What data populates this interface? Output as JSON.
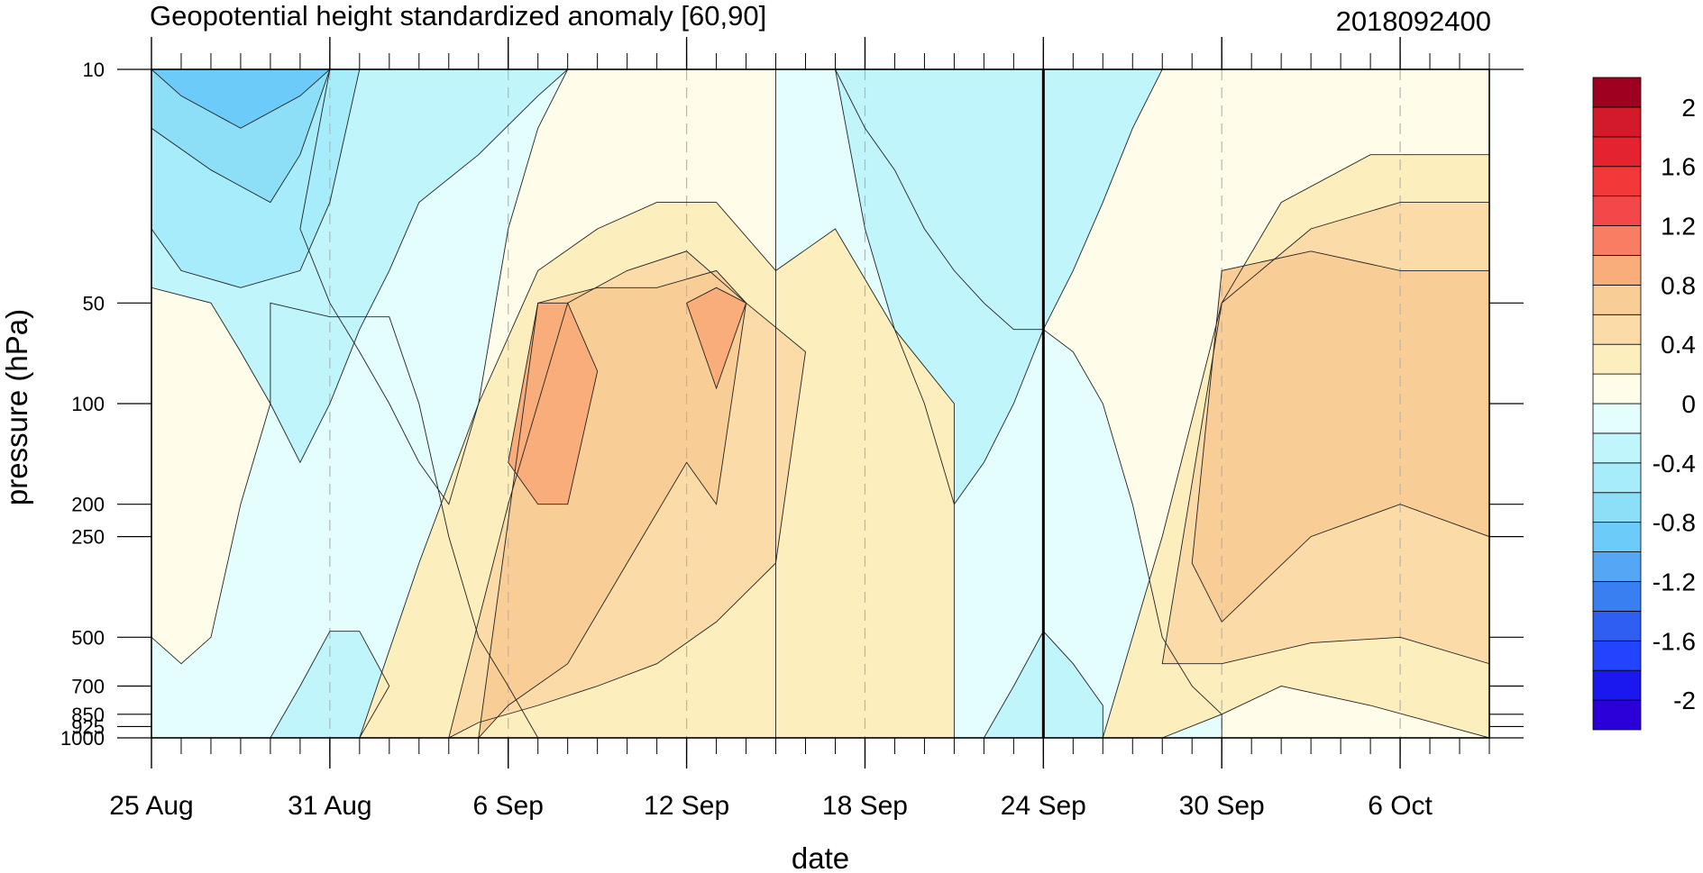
{
  "chart_data": {
    "type": "heatmap",
    "subtype": "filled-contour",
    "title": "Geopotential height standardized anomaly [60,90]",
    "right_title": "2018092400",
    "xlabel": "date",
    "ylabel": "pressure (hPa)",
    "y_scale": "log",
    "y_reversed": true,
    "ylim": [
      1000,
      10
    ],
    "xlim": [
      "2018-08-25",
      "2018-10-09"
    ],
    "x_ticks": [
      {
        "label": "25 Aug",
        "date": "2018-08-25"
      },
      {
        "label": "31 Aug",
        "date": "2018-08-31"
      },
      {
        "label": "6 Sep",
        "date": "2018-09-06"
      },
      {
        "label": "12 Sep",
        "date": "2018-09-12"
      },
      {
        "label": "18 Sep",
        "date": "2018-09-18"
      },
      {
        "label": "24 Sep",
        "date": "2018-09-24"
      },
      {
        "label": "30 Sep",
        "date": "2018-09-30"
      },
      {
        "label": "6 Oct",
        "date": "2018-10-06"
      }
    ],
    "y_ticks": [
      10,
      50,
      100,
      200,
      250,
      500,
      700,
      850,
      925,
      1000
    ],
    "y_tick_labels": [
      "10",
      "50",
      "100",
      "200",
      "250",
      "500",
      "700",
      "850",
      "925",
      "1000"
    ],
    "vertical_line_date": "2018-09-24",
    "grid": "dashed vertical lines at labeled dates",
    "levels": [
      -2.2,
      -2,
      -1.8,
      -1.6,
      -1.4,
      -1.2,
      -1,
      -0.8,
      -0.6,
      -0.4,
      -0.2,
      0,
      0.2,
      0.4,
      0.6,
      0.8,
      1,
      1.2,
      1.4,
      1.6,
      1.8,
      2,
      2.2
    ],
    "colorbar_labels": [
      "2",
      "1.6",
      "1.2",
      "0.8",
      "0.4",
      "0",
      "-0.4",
      "-0.8",
      "-1.2",
      "-1.6",
      "-2"
    ],
    "colorbar_colors": [
      "#2b00d8",
      "#1a18ee",
      "#2244ff",
      "#2e5ff2",
      "#3a7ff2",
      "#55a6f5",
      "#6ccbf8",
      "#8ddff8",
      "#a6ecfa",
      "#c0f5fb",
      "#e4fdfd",
      "#fffde9",
      "#fcefbd",
      "#fbdca8",
      "#f9cd96",
      "#f9ad7a",
      "#f97d62",
      "#f2484a",
      "#f23838",
      "#e42230",
      "#d31a2a",
      "#a0001f"
    ],
    "regions": [
      {
        "level": 0,
        "color": "#fffde9",
        "label": "0 to 0.2",
        "dates": [
          "2018-08-25",
          "2018-10-09",
          "2018-10-09",
          "2018-08-25"
        ],
        "p": [
          1000,
          1000,
          10,
          10
        ]
      },
      {
        "level": -0.2,
        "color": "#e4fdfd",
        "label": "-0.2 to 0",
        "dates": [
          "2018-08-25",
          "2018-08-25",
          "2018-08-26",
          "2018-08-27",
          "2018-08-28",
          "2018-08-29",
          "2018-08-29",
          "2018-08-31",
          "2018-09-02",
          "2018-09-03",
          "2018-09-04",
          "2018-09-05",
          "2018-09-06",
          "2018-09-07",
          "2018-09-09",
          "2018-09-10",
          "2018-09-11",
          "2018-09-12",
          "2018-09-13",
          "2018-09-14",
          "2018-09-13",
          "2018-09-12",
          "2018-09-11",
          "2018-09-10",
          "2018-09-09",
          "2018-09-08",
          "2018-09-07",
          "2018-09-07",
          "2018-09-06",
          "2018-09-05",
          "2018-09-04",
          "2018-09-03",
          "2018-08-25"
        ],
        "p": [
          1000,
          500,
          600,
          500,
          200,
          100,
          50,
          55,
          55,
          100,
          250,
          500,
          700,
          1000,
          1000,
          1000,
          1000,
          1000,
          1000,
          1000,
          1000,
          1000,
          1000,
          1000,
          1000,
          1000,
          1000,
          1000,
          1000,
          1000,
          1000,
          1000,
          1000
        ]
      },
      {
        "level": -0.2,
        "color": "#e4fdfd",
        "label": "-0.2 to 0 (upper)",
        "dates": [
          "2018-09-08",
          "2018-09-14",
          "2018-09-12",
          "2018-09-10",
          "2018-09-09",
          "2018-09-07",
          "2018-09-05",
          "2018-09-03",
          "2018-09-01",
          "2018-08-31",
          "2018-08-30",
          "2018-08-31",
          "2018-09-01",
          "2018-09-02",
          "2018-09-03",
          "2018-09-04",
          "2018-09-05",
          "2018-09-06",
          "2018-09-07"
        ],
        "p": [
          10,
          10,
          10,
          10,
          10,
          10,
          10,
          10,
          10,
          10,
          30,
          50,
          70,
          100,
          150,
          200,
          100,
          30,
          15
        ]
      },
      {
        "level": -0.2,
        "color": "#e4fdfd",
        "label": "-0.2 to 0 (mid)",
        "dates": [
          "2018-09-15",
          "2018-09-17",
          "2018-09-18",
          "2018-09-19",
          "2018-09-20",
          "2018-09-21",
          "2018-09-22",
          "2018-09-23",
          "2018-09-24",
          "2018-09-25",
          "2018-09-26",
          "2018-09-27",
          "2018-09-28",
          "2018-09-29",
          "2018-09-30",
          "2018-09-30",
          "2018-09-29",
          "2018-09-28",
          "2018-09-27",
          "2018-09-26",
          "2018-09-25",
          "2018-09-24",
          "2018-09-23",
          "2018-09-22",
          "2018-09-21",
          "2018-09-20",
          "2018-09-19",
          "2018-09-18",
          "2018-09-17",
          "2018-09-16",
          "2018-09-15"
        ],
        "p": [
          10,
          10,
          15,
          20,
          30,
          40,
          50,
          60,
          60,
          70,
          100,
          200,
          500,
          700,
          850,
          1000,
          1000,
          1000,
          1000,
          1000,
          1000,
          1000,
          1000,
          1000,
          1000,
          1000,
          1000,
          1000,
          1000,
          1000,
          1000
        ]
      },
      {
        "level": -0.4,
        "color": "#c0f5fb",
        "label": "-0.4 to -0.2",
        "dates": [
          "2018-08-25",
          "2018-09-08",
          "2018-09-07",
          "2018-09-05",
          "2018-09-03",
          "2018-09-02",
          "2018-09-01",
          "2018-08-31",
          "2018-08-30",
          "2018-08-29",
          "2018-08-28",
          "2018-08-27",
          "2018-08-25"
        ],
        "p": [
          10,
          10,
          12,
          18,
          25,
          40,
          60,
          100,
          150,
          100,
          70,
          50,
          45
        ]
      },
      {
        "level": -0.4,
        "color": "#c0f5fb",
        "label": "-0.4 to -0.2 (right)",
        "dates": [
          "2018-09-17",
          "2018-09-28",
          "2018-09-27",
          "2018-09-26",
          "2018-09-25",
          "2018-09-24",
          "2018-09-23",
          "2018-09-22",
          "2018-09-21",
          "2018-09-20",
          "2018-09-19",
          "2018-09-18"
        ],
        "p": [
          10,
          10,
          15,
          25,
          40,
          60,
          100,
          150,
          200,
          100,
          60,
          30
        ]
      },
      {
        "level": -0.4,
        "color": "#c0f5fb",
        "label": "-0.4 to -0.2 (bottom)",
        "dates": [
          "2018-08-29",
          "2018-08-30",
          "2018-08-31",
          "2018-09-01",
          "2018-09-02",
          "2018-09-01",
          "2018-08-30"
        ],
        "p": [
          1000,
          700,
          480,
          480,
          700,
          1000,
          1000
        ]
      },
      {
        "level": -0.4,
        "color": "#c0f5fb",
        "label": "-0.4 to -0.2 (bottom right)",
        "dates": [
          "2018-09-22",
          "2018-09-23",
          "2018-09-24",
          "2018-09-25",
          "2018-09-26",
          "2018-09-26"
        ],
        "p": [
          1000,
          700,
          480,
          600,
          800,
          1000
        ]
      },
      {
        "level": -0.6,
        "color": "#a6ecfa",
        "label": "-0.6 to -0.4",
        "dates": [
          "2018-08-25",
          "2018-09-01",
          "2018-08-31",
          "2018-08-30",
          "2018-08-28",
          "2018-08-26",
          "2018-08-25"
        ],
        "p": [
          10,
          10,
          25,
          40,
          45,
          40,
          30
        ]
      },
      {
        "level": -0.8,
        "color": "#8ddff8",
        "label": "-0.8 to -0.6",
        "dates": [
          "2018-08-25",
          "2018-08-31",
          "2018-08-30",
          "2018-08-29",
          "2018-08-27",
          "2018-08-25"
        ],
        "p": [
          10,
          10,
          18,
          25,
          20,
          15
        ]
      },
      {
        "level": -1.0,
        "color": "#6ccbf8",
        "label": "-1.0 to -0.8",
        "dates": [
          "2018-08-25",
          "2018-08-31",
          "2018-08-30",
          "2018-08-28",
          "2018-08-26"
        ],
        "p": [
          10,
          10,
          12,
          15,
          12
        ]
      },
      {
        "level": 0.2,
        "color": "#fcefbd",
        "label": "0.2 to 0.4",
        "dates": [
          "2018-09-01",
          "2018-09-03",
          "2018-09-05",
          "2018-09-07",
          "2018-09-09",
          "2018-09-11",
          "2018-09-13",
          "2018-09-15",
          "2018-09-17",
          "2018-09-19",
          "2018-09-21",
          "2018-09-21",
          "2018-09-19",
          "2018-09-17",
          "2018-09-15",
          "2018-09-13",
          "2018-09-11",
          "2018-09-09",
          "2018-09-07",
          "2018-09-05",
          "2018-09-03",
          "2018-09-01"
        ],
        "p": [
          1000,
          300,
          100,
          40,
          30,
          25,
          25,
          40,
          30,
          60,
          100,
          1000,
          1000,
          1000,
          1000,
          1000,
          1000,
          1000,
          1000,
          1000,
          1000,
          1000
        ]
      },
      {
        "level": 0.2,
        "color": "#fcefbd",
        "label": "0.2 to 0.4 (right)",
        "dates": [
          "2018-09-26",
          "2018-09-28",
          "2018-09-30",
          "2018-10-02",
          "2018-10-05",
          "2018-10-09",
          "2018-10-09",
          "2018-10-05",
          "2018-10-02",
          "2018-09-30",
          "2018-09-28",
          "2018-09-26"
        ],
        "p": [
          1000,
          250,
          50,
          25,
          18,
          18,
          1000,
          800,
          700,
          850,
          1000,
          1000
        ]
      },
      {
        "level": 0.4,
        "color": "#fbdca8",
        "label": "0.4 to 0.6",
        "dates": [
          "2018-09-04",
          "2018-09-06",
          "2018-09-08",
          "2018-09-10",
          "2018-09-12",
          "2018-09-14",
          "2018-09-16",
          "2018-09-15",
          "2018-09-13",
          "2018-09-11",
          "2018-09-09",
          "2018-09-07",
          "2018-09-05",
          "2018-09-04"
        ],
        "p": [
          1000,
          200,
          50,
          40,
          35,
          50,
          70,
          300,
          450,
          600,
          700,
          800,
          900,
          1000
        ]
      },
      {
        "level": 0.4,
        "color": "#fbdca8",
        "label": "0.4 to 0.6 (right)",
        "dates": [
          "2018-09-28",
          "2018-09-30",
          "2018-10-03",
          "2018-10-06",
          "2018-10-09",
          "2018-10-09",
          "2018-10-06",
          "2018-10-03",
          "2018-09-30",
          "2018-09-28"
        ],
        "p": [
          600,
          50,
          30,
          25,
          25,
          600,
          500,
          520,
          600,
          600
        ]
      },
      {
        "level": 0.6,
        "color": "#f9cd96",
        "label": "0.6 to 0.8",
        "dates": [
          "2018-09-05",
          "2018-09-07",
          "2018-09-09",
          "2018-09-11",
          "2018-09-13",
          "2018-09-14",
          "2018-09-13",
          "2018-09-12",
          "2018-09-10",
          "2018-09-08",
          "2018-09-06",
          "2018-09-05"
        ],
        "p": [
          1000,
          50,
          45,
          45,
          40,
          50,
          200,
          150,
          300,
          600,
          800,
          1000
        ]
      },
      {
        "level": 0.6,
        "color": "#f9cd96",
        "label": "0.6 to 0.8 (right)",
        "dates": [
          "2018-09-29",
          "2018-09-30",
          "2018-10-03",
          "2018-10-06",
          "2018-10-09",
          "2018-10-09",
          "2018-10-06",
          "2018-10-03",
          "2018-09-30",
          "2018-09-29"
        ],
        "p": [
          300,
          40,
          35,
          40,
          40,
          250,
          200,
          250,
          450,
          300
        ]
      },
      {
        "level": 0.8,
        "color": "#f9ad7a",
        "label": "0.8 to 1.0",
        "dates": [
          "2018-09-06",
          "2018-09-07",
          "2018-09-08",
          "2018-09-09",
          "2018-09-08",
          "2018-09-07",
          "2018-09-06"
        ],
        "p": [
          150,
          50,
          50,
          80,
          200,
          200,
          150
        ]
      },
      {
        "level": 0.8,
        "color": "#f9ad7a",
        "label": "0.8 to 1.0 (12 Sep)",
        "dates": [
          "2018-09-12",
          "2018-09-13",
          "2018-09-14",
          "2018-09-13"
        ],
        "p": [
          50,
          45,
          50,
          90
        ]
      }
    ]
  }
}
